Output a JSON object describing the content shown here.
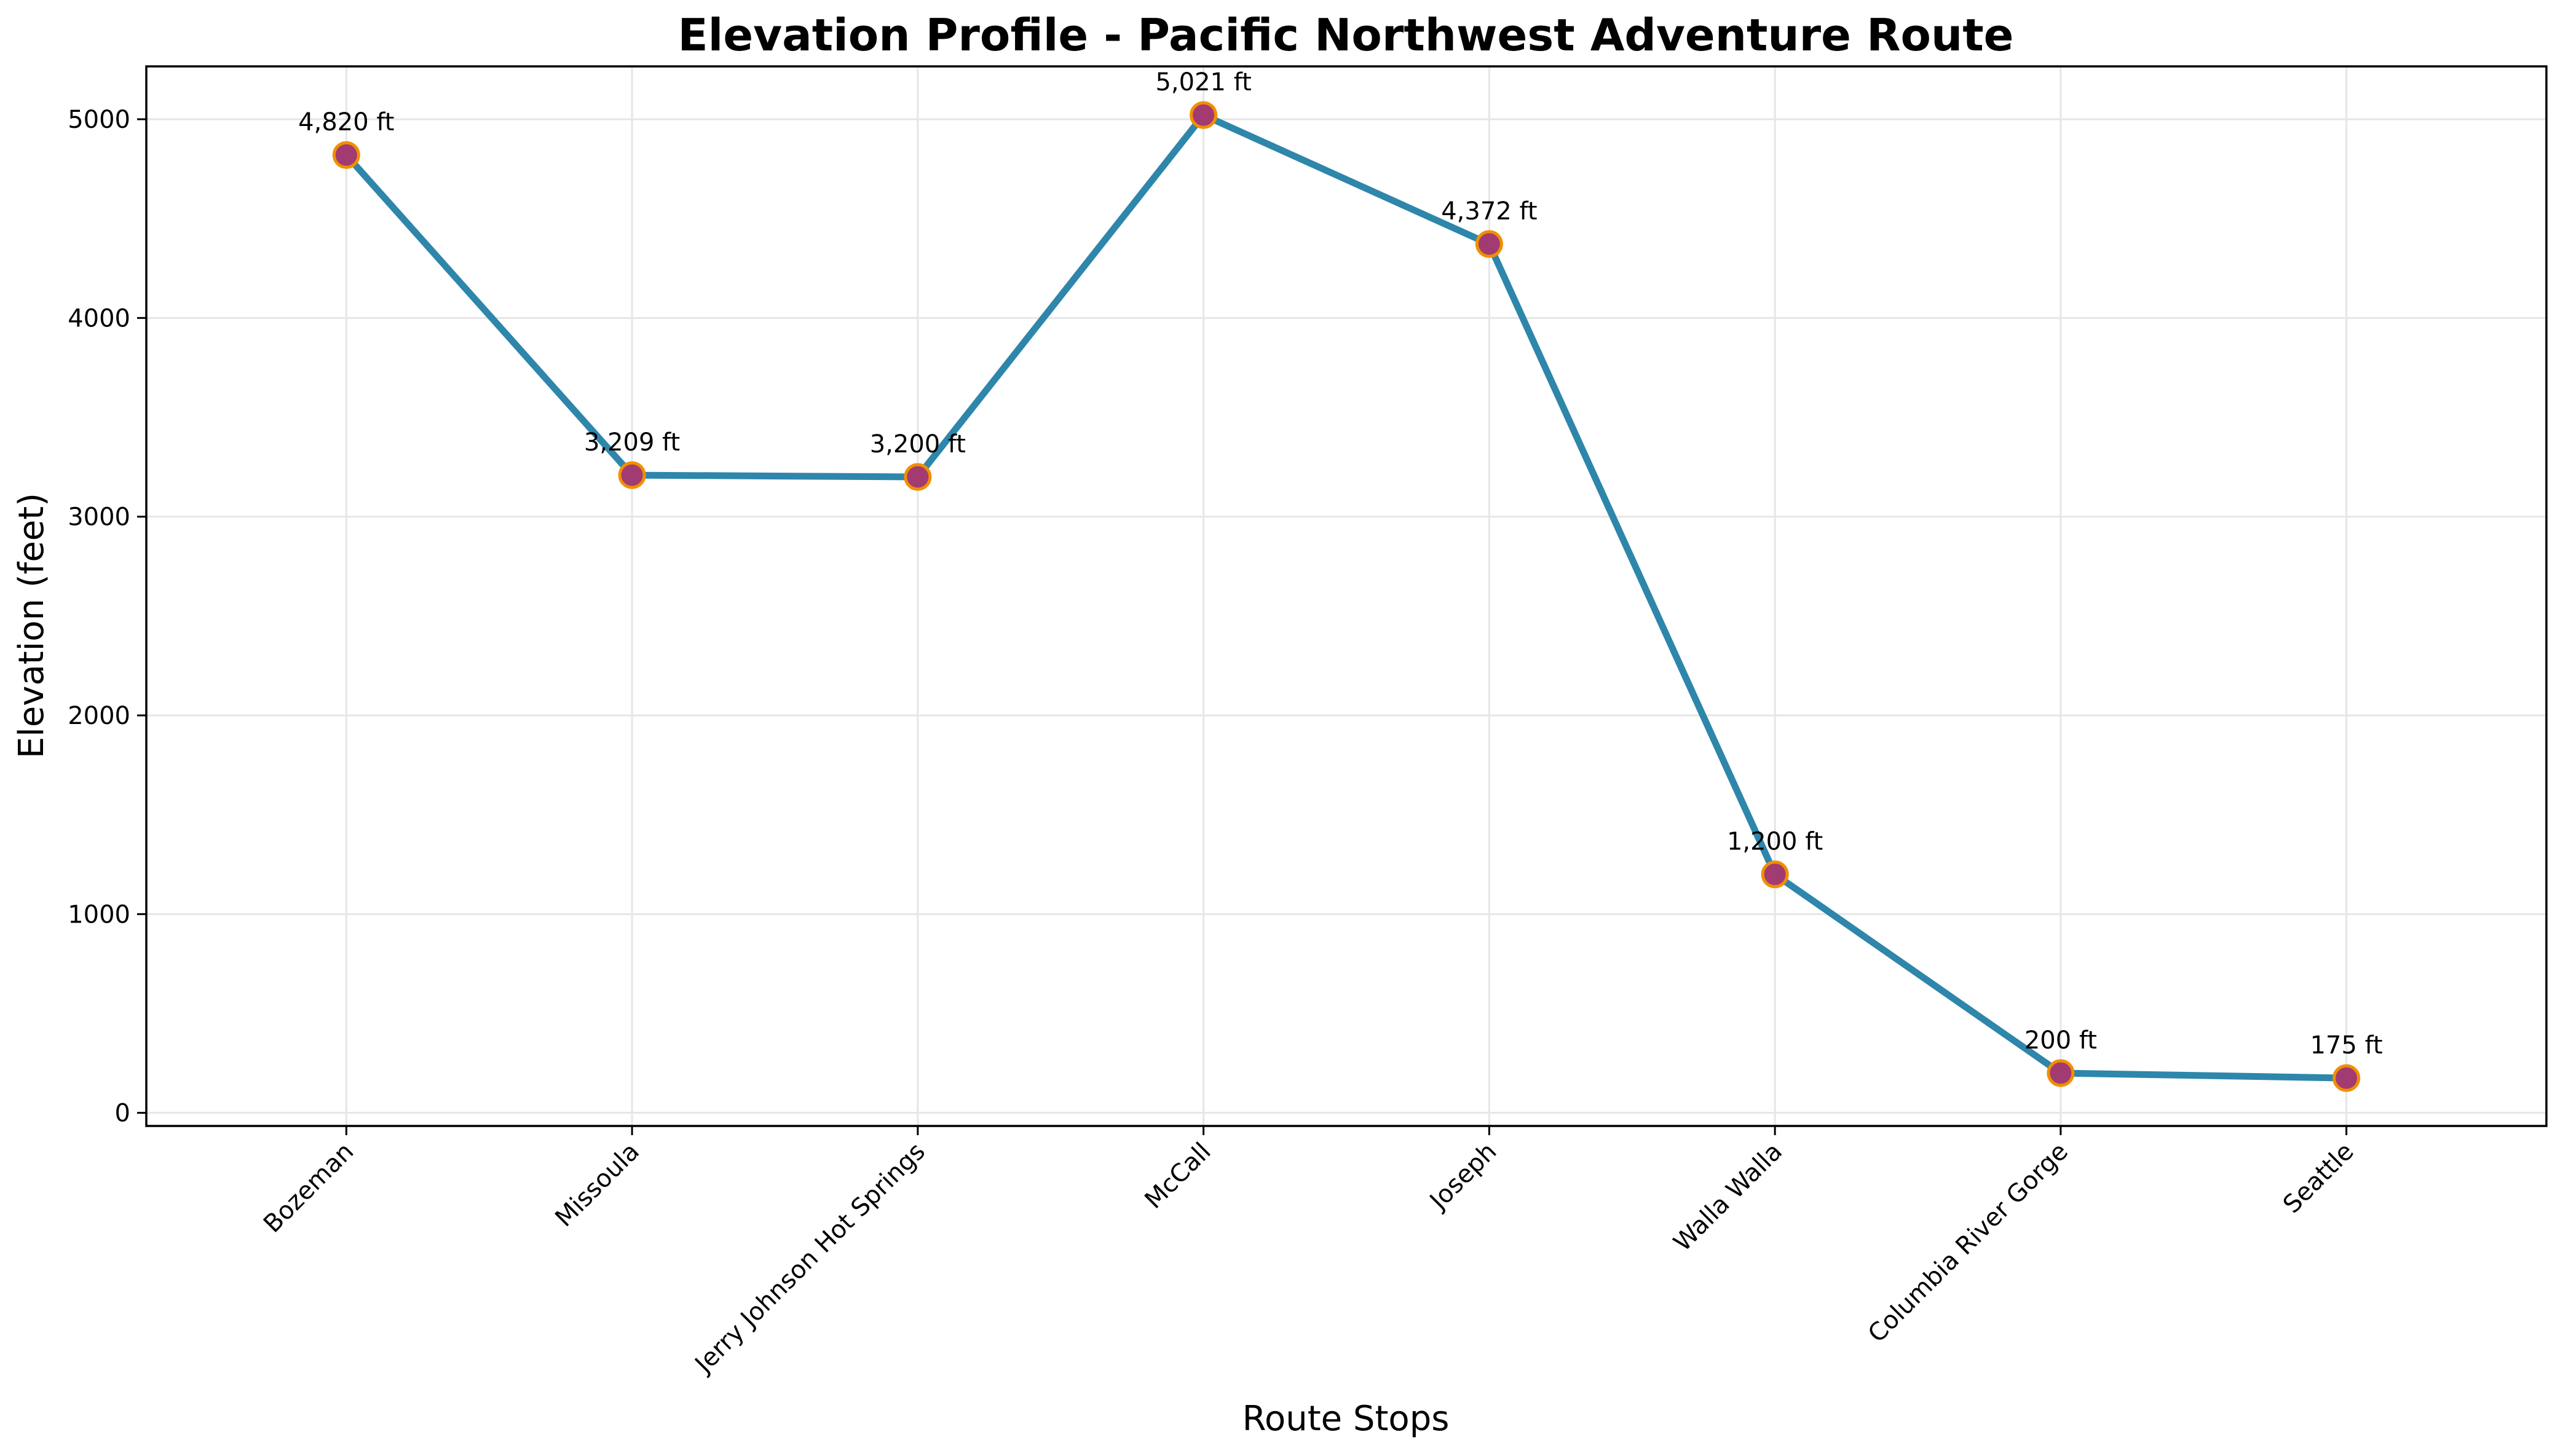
{
  "chart_data": {
    "type": "line",
    "title": "Elevation Profile - Pacific Northwest Adventure Route",
    "xlabel": "Route Stops",
    "ylabel": "Elevation (feet)",
    "categories": [
      "Bozeman",
      "Missoula",
      "Jerry Johnson Hot Springs",
      "McCall",
      "Joseph",
      "Walla Walla",
      "Columbia River Gorge",
      "Seattle"
    ],
    "values": [
      4820,
      3209,
      3200,
      5021,
      4372,
      1200,
      200,
      175
    ],
    "data_labels": [
      "4,820 ft",
      "3,209 ft",
      "3,200 ft",
      "5,021 ft",
      "4,372 ft",
      "1,200 ft",
      "200 ft",
      "175 ft"
    ],
    "yticks": [
      0,
      1000,
      2000,
      3000,
      4000,
      5000
    ],
    "ylim": [
      -66,
      5266
    ],
    "grid": true,
    "colors": {
      "line": "#2E86AB",
      "marker_fill": "#A23B72",
      "marker_edge": "#F18F01",
      "grid": "#e6e6e6"
    }
  }
}
